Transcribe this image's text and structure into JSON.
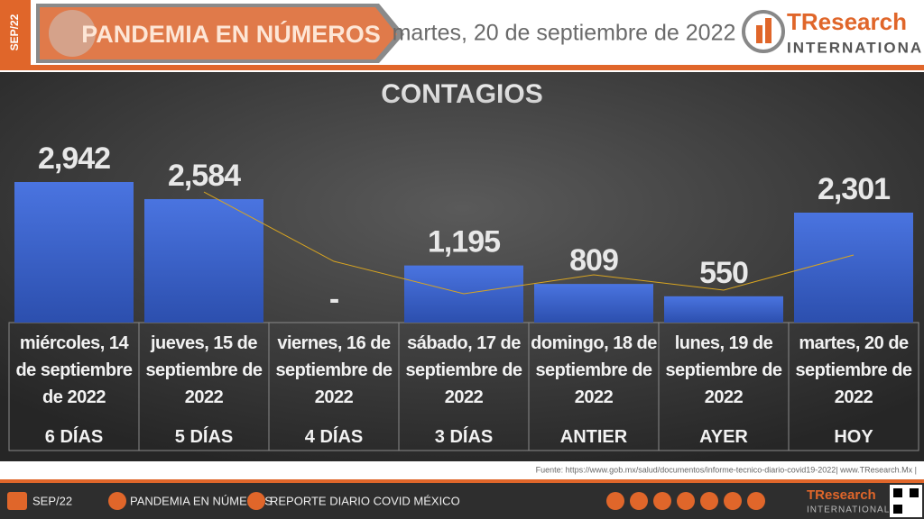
{
  "header": {
    "tag": "SEP/22",
    "title": "PANDEMIA EN NÚMEROS",
    "date": "martes, 20 de septiembre de 2022",
    "logo_main": "TResearch",
    "logo_sub": "INTERNATIONAL"
  },
  "chart_data": {
    "type": "bar",
    "title": "CONTAGIOS",
    "categories": [
      "miércoles, 14 de septiembre de 2022",
      "jueves, 15 de septiembre de 2022",
      "viernes, 16 de septiembre de 2022",
      "sábado, 17 de septiembre de 2022",
      "domingo, 18 de septiembre de 2022",
      "lunes, 19 de septiembre de 2022",
      "martes, 20 de septiembre de 2022"
    ],
    "day_labels": [
      "6 DÍAS",
      "5 DÍAS",
      "4 DÍAS",
      "3 DÍAS",
      "ANTIER",
      "AYER",
      "HOY"
    ],
    "values": [
      2942,
      2584,
      null,
      1195,
      809,
      550,
      2301
    ],
    "value_labels": [
      "2,942",
      "2,584",
      "-",
      "1,195",
      "809",
      "550",
      "2,301"
    ],
    "color": "#3d63c9",
    "trendline": {
      "color": "#d9a520",
      "values": [
        null,
        2733,
        1282,
        603,
        999,
        679,
        1414
      ]
    }
  },
  "source": "Fuente: https://www.gob.mx/salud/documentos/informe-tecnico-diario-covid19-2022| www.TResearch.Mx |",
  "footer": {
    "tag": "SEP/22",
    "section": "PANDEMIA EN NÚMEROS",
    "report": "REPORTE DIARIO COVID MÉXICO",
    "logo_main": "TResearch",
    "logo_sub": "INTERNATIONAL"
  }
}
